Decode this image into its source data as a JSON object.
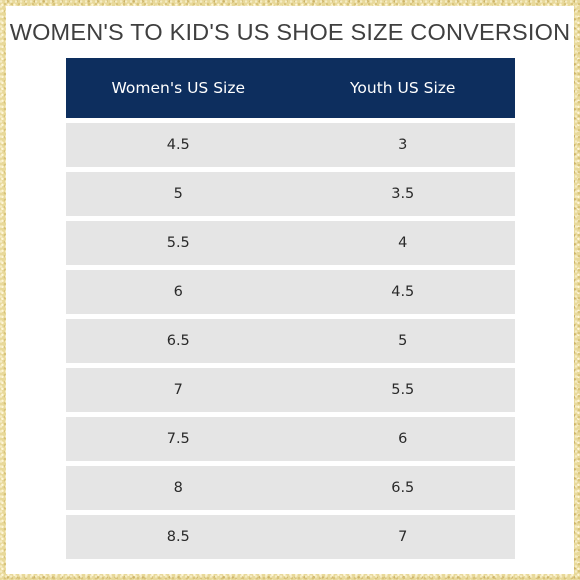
{
  "title": "WOMEN'S TO KID'S US SHOE SIZE CONVERSION",
  "columns": [
    "Women's US Size",
    "Youth US Size"
  ],
  "rows": [
    [
      "4.5",
      "3"
    ],
    [
      "5",
      "3.5"
    ],
    [
      "5.5",
      "4"
    ],
    [
      "6",
      "4.5"
    ],
    [
      "6.5",
      "5"
    ],
    [
      "7",
      "5.5"
    ],
    [
      "7.5",
      "6"
    ],
    [
      "8",
      "6.5"
    ],
    [
      "8.5",
      "7"
    ]
  ],
  "colors": {
    "header_bg": "#0d2e5e",
    "header_text": "#ffffff",
    "cell_bg": "#e5e5e5",
    "border": "#e8d99a"
  }
}
